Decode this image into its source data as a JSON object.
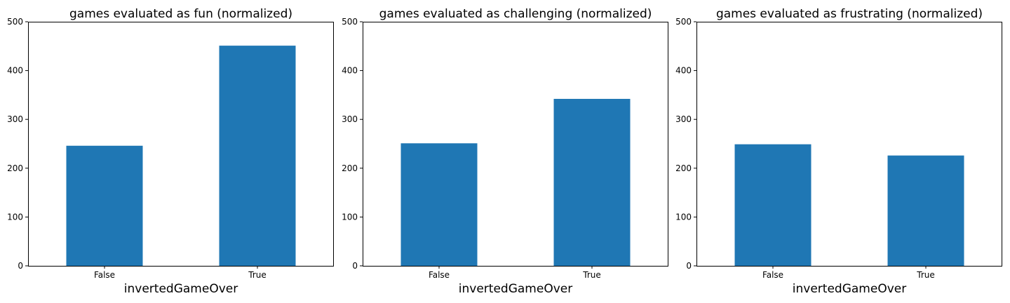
{
  "colors": {
    "bar": "#1f77b4"
  },
  "chart_data": [
    {
      "type": "bar",
      "title": "games evaluated as fun (normalized)",
      "xlabel": "invertedGameOver",
      "ylabel": "",
      "categories": [
        "False",
        "True"
      ],
      "values": [
        246,
        451
      ],
      "ylim": [
        0,
        500
      ],
      "yticks": [
        "0",
        "100",
        "200",
        "300",
        "400",
        "500"
      ],
      "grid": false
    },
    {
      "type": "bar",
      "title": "games evaluated as challenging (normalized)",
      "xlabel": "invertedGameOver",
      "ylabel": "",
      "categories": [
        "False",
        "True"
      ],
      "values": [
        251,
        342
      ],
      "ylim": [
        0,
        500
      ],
      "yticks": [
        "0",
        "100",
        "200",
        "300",
        "400",
        "500"
      ],
      "grid": false
    },
    {
      "type": "bar",
      "title": "games evaluated as frustrating (normalized)",
      "xlabel": "invertedGameOver",
      "ylabel": "",
      "categories": [
        "False",
        "True"
      ],
      "values": [
        249,
        226
      ],
      "ylim": [
        0,
        500
      ],
      "yticks": [
        "0",
        "100",
        "200",
        "300",
        "400",
        "500"
      ],
      "grid": false
    }
  ]
}
